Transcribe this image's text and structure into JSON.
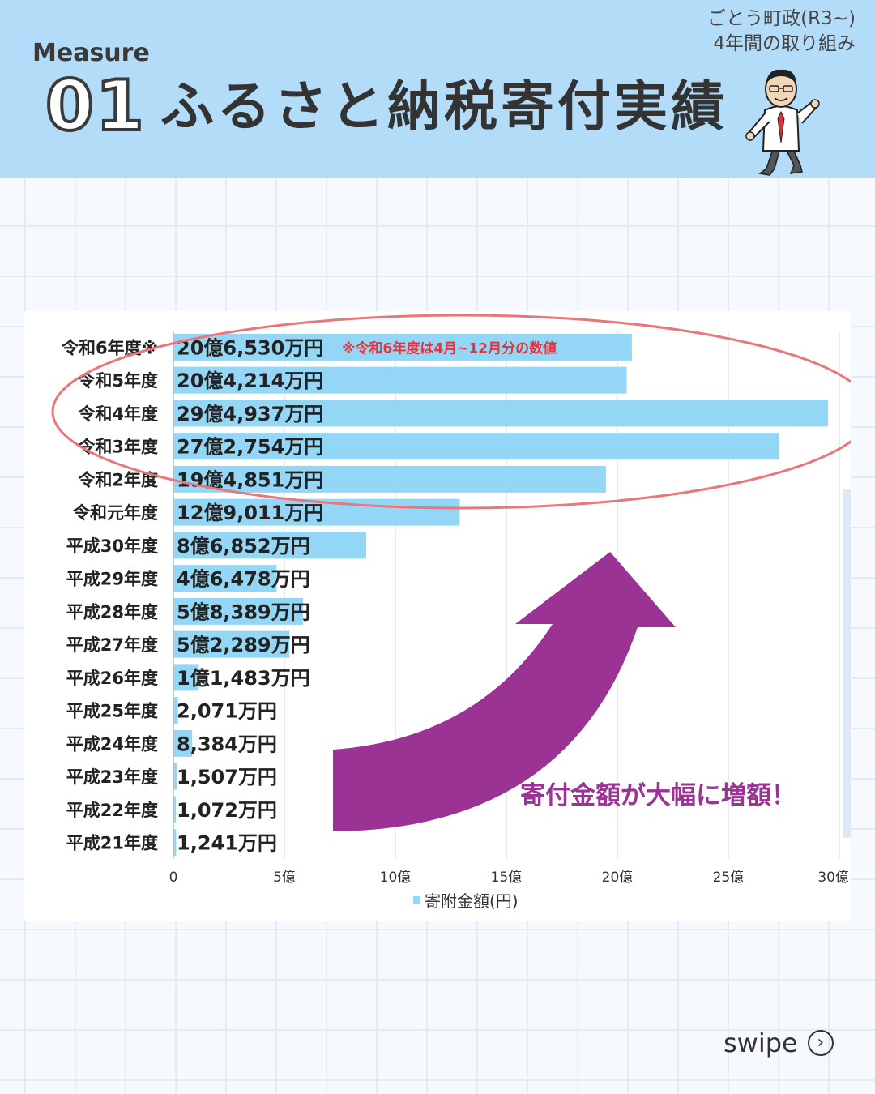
{
  "header": {
    "measure_label": "Measure",
    "measure_number": "01",
    "title": "ふるさと納税寄付実績",
    "corner_line1": "ごとう町政(R3~)",
    "corner_line2": "4年間の取り組み"
  },
  "swipe": {
    "label": "swipe",
    "icon": "chevron-right-circle-icon"
  },
  "colors": {
    "header_bg": "#b3dcf9",
    "bar": "#93d6f6",
    "ellipse": "#e9777a",
    "arrow": "#9b3394",
    "note_red": "#e5333d",
    "callout": "#9b3394"
  },
  "chart_data": {
    "type": "bar",
    "orientation": "horizontal",
    "categories": [
      "令和6年度※",
      "令和5年度",
      "令和4年度",
      "令和3年度",
      "令和2年度",
      "令和元年度",
      "平成30年度",
      "平成29年度",
      "平成28年度",
      "平成27年度",
      "平成26年度",
      "平成25年度",
      "平成24年度",
      "平成23年度",
      "平成22年度",
      "平成21年度"
    ],
    "series": [
      {
        "name": "寄附金額(円)",
        "values": [
          2065300000,
          2042140000,
          2949370000,
          2727540000,
          1948510000,
          1290110000,
          868520000,
          464780000,
          583890000,
          522890000,
          114830000,
          20710000,
          83840000,
          15070000,
          10720000,
          12410000
        ]
      }
    ],
    "data_labels": [
      "20億6,530万円",
      "20億4,214万円",
      "29億4,937万円",
      "27億2,754万円",
      "19億4,851万円",
      "12億9,011万円",
      "8億6,852万円",
      "4億6,478万円",
      "5億8,389万円",
      "5億2,289万円",
      "1億1,483万円",
      "2,071万円",
      "8,384万円",
      "1,507万円",
      "1,072万円",
      "1,241万円"
    ],
    "x_ticks": [
      {
        "value": 0,
        "label": "0"
      },
      {
        "value": 500000000,
        "label": "5億"
      },
      {
        "value": 1000000000,
        "label": "10億"
      },
      {
        "value": 1500000000,
        "label": "15億"
      },
      {
        "value": 2000000000,
        "label": "20億"
      },
      {
        "value": 2500000000,
        "label": "25億"
      },
      {
        "value": 3000000000,
        "label": "30億"
      }
    ],
    "xlim": [
      0,
      3000000000
    ],
    "legend": "寄附金額(円)",
    "legend_position": "bottom",
    "grid": true,
    "note": "※令和6年度は4月~12月分の数値",
    "callout": "寄付金額が大幅に増額！",
    "highlight": [
      "令和6年度※",
      "令和5年度",
      "令和4年度",
      "令和3年度",
      "令和2年度"
    ]
  }
}
